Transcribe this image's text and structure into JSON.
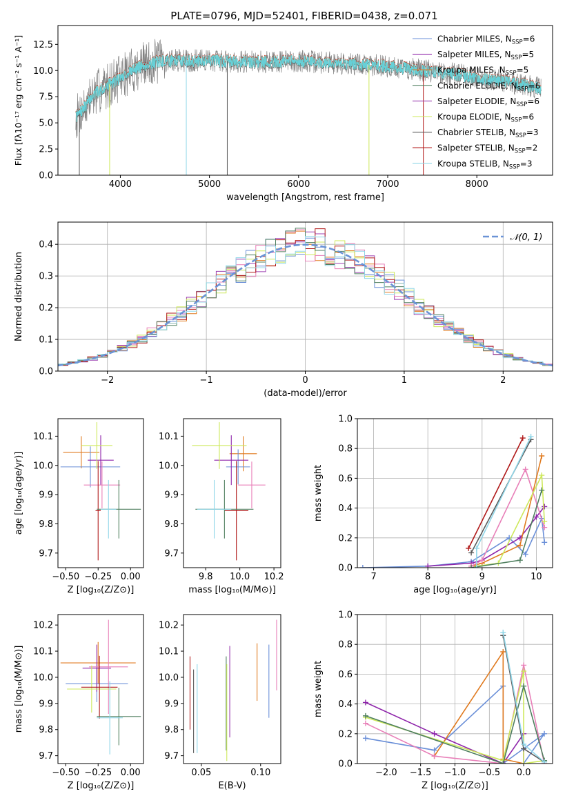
{
  "figure_title": "PLATE=0796, MJD=52401, FIBERID=0438, z=0.071",
  "palette": {
    "Chabrier MILES": "#6a8fd8",
    "Salpeter MILES": "#8e24aa",
    "Kroupa MILES": "#e07a1f",
    "Chabrier ELODIE": "#4f7f5f",
    "Salpeter ELODIE": "#9c3fb0",
    "Kroupa ELODIE": "#cde85a",
    "Chabrier STELIB": "#5a5a5a",
    "Salpeter STELIB": "#b01818",
    "Kroupa STELIB": "#8fd6e8",
    "pink": "#e87fb8",
    "spectrum_data": "#808080",
    "spectrum_model": "#66d0d8"
  },
  "chart_data": [
    {
      "id": "spectrum",
      "type": "line",
      "title": "PLATE=0796, MJD=52401, FIBERID=0438, z=0.071",
      "xlabel": "wavelength [Angstrom, rest frame]",
      "ylabel": "Flux [fλ10⁻¹⁷ erg cm⁻² s⁻¹ A⁻¹]",
      "xlim": [
        3300,
        8850
      ],
      "ylim": [
        0,
        14.3
      ],
      "xticks": [
        4000,
        5000,
        6000,
        7000,
        8000
      ],
      "xticklabels": [
        "4000",
        "5000",
        "6000",
        "7000",
        "8000"
      ],
      "yticks": [
        0,
        2.5,
        5.0,
        7.5,
        10.0,
        12.5
      ],
      "yticklabels": [
        "0.0",
        "2.5",
        "5.0",
        "7.5",
        "10.0",
        "12.5"
      ],
      "continuum": {
        "x": [
          3500,
          3600,
          3700,
          3800,
          3900,
          4000,
          4100,
          4200,
          4300,
          4400,
          4600,
          4800,
          5000,
          5200,
          5500,
          6000,
          6500,
          7000,
          7500,
          7800,
          8000,
          8300,
          8500,
          8700
        ],
        "y": [
          5.5,
          6.5,
          7.7,
          8.3,
          8.8,
          9.3,
          9.9,
          10.3,
          10.6,
          10.8,
          11.0,
          10.9,
          11.0,
          10.9,
          10.8,
          10.9,
          10.7,
          10.4,
          9.9,
          9.6,
          9.3,
          9.0,
          8.7,
          8.3
        ]
      },
      "legend": [
        {
          "label": "Chabrier MILES, N",
          "sub": "SSP",
          "n": "=6"
        },
        {
          "label": "Salpeter MILES, N",
          "sub": "SSP",
          "n": "=5"
        },
        {
          "label": "Kroupa MILES, N",
          "sub": "SSP",
          "n": "=5"
        },
        {
          "label": "Chabrier ELODIE, N",
          "sub": "SSP",
          "n": "=6"
        },
        {
          "label": "Salpeter ELODIE, N",
          "sub": "SSP",
          "n": "=6"
        },
        {
          "label": "Kroupa ELODIE, N",
          "sub": "SSP",
          "n": "=6"
        },
        {
          "label": "Chabrier STELIB, N",
          "sub": "SSP",
          "n": "=3"
        },
        {
          "label": "Salpeter STELIB, N",
          "sub": "SSP",
          "n": "=2"
        },
        {
          "label": "Kroupa STELIB, N",
          "sub": "SSP",
          "n": "=3"
        }
      ],
      "legend_loc": "upper right"
    },
    {
      "id": "residuals",
      "type": "histogram",
      "xlabel": "(data-model)/error",
      "ylabel": "Normed distribution",
      "xlim": [
        -2.5,
        2.5
      ],
      "ylim": [
        0,
        0.47
      ],
      "xticks": [
        -2,
        -1,
        0,
        1,
        2
      ],
      "xticklabels": [
        "−2",
        "−1",
        "0",
        "1",
        "2"
      ],
      "yticks": [
        0.0,
        0.1,
        0.2,
        0.3,
        0.4
      ],
      "yticklabels": [
        "0.0",
        "0.1",
        "0.2",
        "0.3",
        "0.4"
      ],
      "bin_width": 0.1,
      "gaussian_label": "𝒩(0, 1)",
      "legend_loc": "upper right",
      "grid": true
    },
    {
      "id": "age-vs-Z",
      "type": "errorbar",
      "xlabel": "Z [log₁₀(Z/Z⊙)]",
      "ylabel": "age  [log₁₀(age/yr)]",
      "xlim": [
        -0.56,
        0.1
      ],
      "ylim": [
        9.65,
        10.16
      ],
      "xticks": [
        -0.5,
        -0.25,
        0.0
      ],
      "xticklabels": [
        "−0.50",
        "−0.25",
        "0.00"
      ],
      "yticks": [
        9.7,
        9.8,
        9.9,
        10.0,
        10.1
      ],
      "yticklabels": [
        "9.7",
        "9.8",
        "9.9",
        "10.0",
        "10.1"
      ],
      "points": [
        {
          "color": "Kroupa MILES",
          "x": -0.38,
          "xerr": 0.14,
          "y": 10.045,
          "yerr": 0.055
        },
        {
          "color": "Chabrier MILES",
          "x": -0.31,
          "xerr": 0.23,
          "y": 9.995,
          "yerr": 0.07
        },
        {
          "color": "Salpeter MILES",
          "x": -0.23,
          "xerr": 0.1,
          "y": 10.018,
          "yerr": 0.085
        },
        {
          "color": "pink",
          "x": -0.22,
          "xerr": 0.14,
          "y": 9.933,
          "yerr": 0.08
        },
        {
          "color": "Kroupa ELODIE",
          "x": -0.26,
          "xerr": 0.12,
          "y": 10.068,
          "yerr": 0.08
        },
        {
          "color": "Salpeter STELIB",
          "x": -0.25,
          "xerr": 0.02,
          "y": 9.845,
          "yerr": 0.17
        },
        {
          "color": "Chabrier ELODIE",
          "x": -0.09,
          "xerr": 0.17,
          "y": 9.85,
          "yerr": 0.1
        },
        {
          "color": "Kroupa STELIB",
          "x": -0.17,
          "xerr": 0.06,
          "y": 9.85,
          "yerr": 0.1
        }
      ]
    },
    {
      "id": "age-vs-mass",
      "type": "errorbar",
      "xlabel": "mass [log₁₀(M/M⊙)]",
      "ylabel": "",
      "xlim": [
        9.67,
        10.24
      ],
      "ylim": [
        9.65,
        10.16
      ],
      "xticks": [
        9.8,
        10.0,
        10.2
      ],
      "xticklabels": [
        "9.8",
        "10.0",
        "10.2"
      ],
      "yticks": [
        9.7,
        9.8,
        9.9,
        10.0,
        10.1
      ],
      "yticklabels": [
        "9.7",
        "9.8",
        "9.9",
        "10.0",
        "10.1"
      ],
      "points": [
        {
          "color": "Kroupa MILES",
          "x": 10.02,
          "xerr": 0.08,
          "y": 10.04,
          "yerr": 0.06
        },
        {
          "color": "Chabrier MILES",
          "x": 9.99,
          "xerr": 0.07,
          "y": 9.995,
          "yerr": 0.06
        },
        {
          "color": "Salpeter MILES",
          "x": 9.95,
          "xerr": 0.1,
          "y": 10.018,
          "yerr": 0.085
        },
        {
          "color": "pink",
          "x": 10.07,
          "xerr": 0.08,
          "y": 9.933,
          "yerr": 0.08
        },
        {
          "color": "Kroupa ELODIE",
          "x": 9.88,
          "xerr": 0.16,
          "y": 10.068,
          "yerr": 0.08
        },
        {
          "color": "Salpeter STELIB",
          "x": 9.98,
          "xerr": 0.07,
          "y": 9.845,
          "yerr": 0.17
        },
        {
          "color": "Chabrier ELODIE",
          "x": 9.91,
          "xerr": 0.17,
          "y": 9.85,
          "yerr": 0.1
        },
        {
          "color": "Kroupa STELIB",
          "x": 9.85,
          "xerr": 0.1,
          "y": 9.85,
          "yerr": 0.1
        }
      ]
    },
    {
      "id": "mass-weight-vs-age",
      "type": "line",
      "xlabel": "age  [log₁₀(age/yr)]",
      "ylabel": "mass weight",
      "xlim": [
        6.7,
        10.3
      ],
      "ylim": [
        0,
        1.0
      ],
      "xticks": [
        7,
        8,
        9,
        10
      ],
      "xticklabels": [
        "7",
        "8",
        "9",
        "10"
      ],
      "yticks": [
        0.0,
        0.2,
        0.4,
        0.6,
        0.8,
        1.0
      ],
      "yticklabels": [
        "0.0",
        "0.2",
        "0.4",
        "0.6",
        "0.8",
        "1.0"
      ],
      "grid": true,
      "series": [
        {
          "color": "Chabrier MILES",
          "x": [
            6.8,
            8.0,
            8.8,
            9.5,
            9.8,
            10.1,
            10.15
          ],
          "y": [
            0.0,
            0.01,
            0.04,
            0.2,
            0.09,
            0.33,
            0.17
          ]
        },
        {
          "color": "Salpeter MILES",
          "x": [
            8.0,
            8.8,
            9.0,
            9.7,
            10.0,
            10.15
          ],
          "y": [
            0.01,
            0.03,
            0.05,
            0.2,
            0.34,
            0.41
          ]
        },
        {
          "color": "Kroupa MILES",
          "x": [
            8.8,
            9.0,
            9.7,
            10.1
          ],
          "y": [
            0.01,
            0.03,
            0.15,
            0.75
          ]
        },
        {
          "color": "pink",
          "x": [
            8.8,
            9.0,
            9.8,
            10.15
          ],
          "y": [
            0.01,
            0.05,
            0.66,
            0.27
          ]
        },
        {
          "color": "Kroupa ELODIE",
          "x": [
            8.9,
            9.3,
            10.1,
            10.15
          ],
          "y": [
            0.01,
            0.03,
            0.62,
            0.31
          ]
        },
        {
          "color": "Chabrier ELODIE",
          "x": [
            8.8,
            9.7,
            10.1
          ],
          "y": [
            0.0,
            0.05,
            0.52
          ]
        },
        {
          "color": "Chabrier STELIB",
          "x": [
            8.8,
            9.9
          ],
          "y": [
            0.1,
            0.86
          ]
        },
        {
          "color": "Salpeter STELIB",
          "x": [
            8.75,
            9.75
          ],
          "y": [
            0.13,
            0.87
          ]
        },
        {
          "color": "Kroupa STELIB",
          "x": [
            8.9,
            8.9,
            9.9
          ],
          "y": [
            0.0,
            0.13,
            0.88
          ]
        }
      ]
    },
    {
      "id": "mass-vs-Z",
      "type": "errorbar",
      "xlabel": "Z [log₁₀(Z/Z⊙)]",
      "ylabel": "mass [log₁₀(M/M⊙)]",
      "xlim": [
        -0.56,
        0.1
      ],
      "ylim": [
        9.67,
        10.24
      ],
      "xticks": [
        -0.5,
        -0.25,
        0.0
      ],
      "xticklabels": [
        "−0.50",
        "−0.25",
        "0.00"
      ],
      "yticks": [
        9.7,
        9.8,
        9.9,
        10.0,
        10.1,
        10.2
      ],
      "yticklabels": [
        "9.7",
        "9.8",
        "9.9",
        "10.0",
        "10.1",
        "10.2"
      ],
      "points": [
        {
          "color": "Kroupa MILES",
          "x": -0.25,
          "xerr": 0.29,
          "y": 10.055,
          "yerr": 0.08
        },
        {
          "color": "Chabrier MILES",
          "x": -0.26,
          "xerr": 0.24,
          "y": 9.975,
          "yerr": 0.07
        },
        {
          "color": "Salpeter MILES",
          "x": -0.26,
          "xerr": 0.11,
          "y": 10.035,
          "yerr": 0.09
        },
        {
          "color": "pink",
          "x": -0.17,
          "xerr": 0.15,
          "y": 10.04,
          "yerr": 0.18
        },
        {
          "color": "Kroupa ELODIE",
          "x": -0.3,
          "xerr": 0.19,
          "y": 9.955,
          "yerr": 0.09
        },
        {
          "color": "Salpeter STELIB",
          "x": -0.24,
          "xerr": 0.14,
          "y": 9.962,
          "yerr": 0.12
        },
        {
          "color": "Chabrier ELODIE",
          "x": -0.09,
          "xerr": 0.17,
          "y": 9.85,
          "yerr": 0.11
        },
        {
          "color": "Kroupa STELIB",
          "x": -0.16,
          "xerr": 0.1,
          "y": 9.845,
          "yerr": 0.14
        }
      ]
    },
    {
      "id": "mass-vs-ebv",
      "type": "errorbar",
      "xlabel": "E(B-V)",
      "ylabel": "",
      "xlim": [
        0.035,
        0.117
      ],
      "ylim": [
        9.67,
        10.24
      ],
      "xticks": [
        0.05,
        0.1
      ],
      "xticklabels": [
        "0.05",
        "0.10"
      ],
      "yticks": [
        9.7,
        9.8,
        9.9,
        10.0,
        10.1,
        10.2
      ],
      "yticklabels": [
        "9.7",
        "9.8",
        "9.9",
        "10.0",
        "10.1",
        "10.2"
      ],
      "points": [
        {
          "color": "Salpeter STELIB",
          "x": 0.0405,
          "y": 9.94,
          "yerr": 0.14
        },
        {
          "color": "Chabrier STELIB",
          "x": 0.0435,
          "y": 9.87,
          "yerr": 0.16
        },
        {
          "color": "Kroupa STELIB",
          "x": 0.0465,
          "y": 9.88,
          "yerr": 0.17
        },
        {
          "color": "Chabrier ELODIE",
          "x": 0.071,
          "y": 9.9,
          "yerr": 0.18
        },
        {
          "color": "Kroupa ELODIE",
          "x": 0.0715,
          "y": 9.865,
          "yerr": 0.185
        },
        {
          "color": "Salpeter ELODIE",
          "x": 0.074,
          "y": 9.945,
          "yerr": 0.175
        },
        {
          "color": "Kroupa MILES",
          "x": 0.097,
          "y": 10.02,
          "yerr": 0.11
        },
        {
          "color": "Chabrier MILES",
          "x": 0.107,
          "y": 9.985,
          "yerr": 0.14
        },
        {
          "color": "pink",
          "x": 0.1135,
          "y": 10.085,
          "yerr": 0.135
        }
      ]
    },
    {
      "id": "mass-weight-vs-Z",
      "type": "line",
      "xlabel": "Z [log₁₀(Z/Z⊙)]",
      "ylabel": "mass weight",
      "xlim": [
        -2.42,
        0.42
      ],
      "ylim": [
        0,
        1.0
      ],
      "xticks": [
        -2.0,
        -1.5,
        -1.0,
        -0.5,
        0.0
      ],
      "xticklabels": [
        "−2.0",
        "−1.5",
        "−1.0",
        "−0.5",
        "0.0"
      ],
      "yticks": [
        0.0,
        0.2,
        0.4,
        0.6,
        0.8,
        1.0
      ],
      "yticklabels": [
        "0.0",
        "0.2",
        "0.4",
        "0.6",
        "0.8",
        "1.0"
      ],
      "grid": true,
      "series": [
        {
          "color": "Chabrier MILES",
          "x": [
            -2.3,
            -1.3,
            -0.3,
            -0.3,
            0.0,
            0.3,
            0.0
          ],
          "y": [
            0.17,
            0.09,
            0.52,
            0.0,
            0.1,
            0.2,
            0.0
          ]
        },
        {
          "color": "Salpeter MILES",
          "x": [
            -2.3,
            -1.3,
            -0.3,
            0.0,
            0.0
          ],
          "y": [
            0.41,
            0.2,
            0.0,
            0.2,
            0.0
          ]
        },
        {
          "color": "Kroupa MILES",
          "x": [
            -1.3,
            -0.3,
            -0.3,
            0.0
          ],
          "y": [
            0.05,
            0.75,
            0.03,
            0.0
          ]
        },
        {
          "color": "pink",
          "x": [
            -2.3,
            -1.3,
            -0.3,
            0.0,
            0.3
          ],
          "y": [
            0.27,
            0.05,
            0.0,
            0.66,
            0.0
          ]
        },
        {
          "color": "Kroupa ELODIE",
          "x": [
            -2.3,
            -0.3,
            0.0,
            0.0,
            0.3
          ],
          "y": [
            0.31,
            0.02,
            0.62,
            0.0,
            0.02
          ]
        },
        {
          "color": "Chabrier ELODIE",
          "x": [
            -2.3,
            -0.3,
            0.0,
            0.3
          ],
          "y": [
            0.32,
            0.0,
            0.52,
            0.02
          ]
        },
        {
          "color": "Chabrier STELIB",
          "x": [
            -0.3,
            0.0,
            0.3
          ],
          "y": [
            0.86,
            0.1,
            0.01
          ]
        },
        {
          "color": "Kroupa STELIB",
          "x": [
            -0.3,
            0.0,
            0.3
          ],
          "y": [
            0.88,
            0.13,
            0.01
          ]
        }
      ]
    }
  ]
}
